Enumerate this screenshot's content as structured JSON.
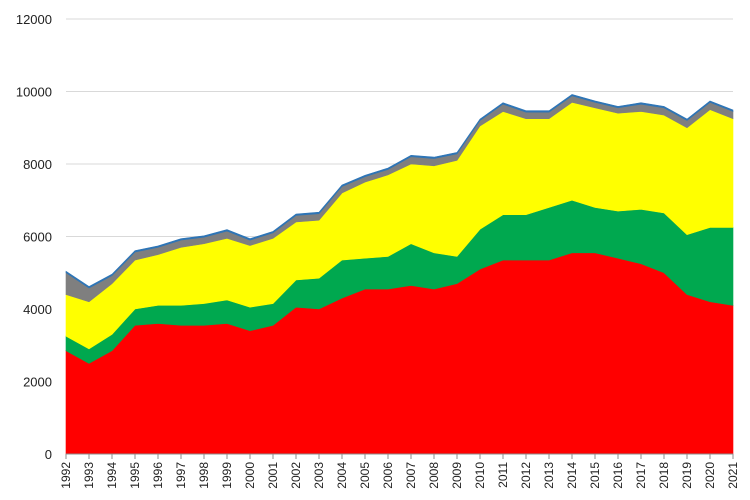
{
  "chart_data": {
    "type": "area",
    "stacked": true,
    "title": "",
    "xlabel": "",
    "ylabel": "",
    "ylim": [
      0,
      12000
    ],
    "yticks": [
      0,
      2000,
      4000,
      6000,
      8000,
      10000,
      12000
    ],
    "grid": "horizontal",
    "legend": "none",
    "categories": [
      "1992",
      "1993",
      "1994",
      "1995",
      "1996",
      "1997",
      "1998",
      "1999",
      "2000",
      "2001",
      "2002",
      "2003",
      "2004",
      "2005",
      "2006",
      "2007",
      "2008",
      "2009",
      "2010",
      "2011",
      "2012",
      "2013",
      "2014",
      "2015",
      "2016",
      "2017",
      "2018",
      "2019",
      "2020",
      "2021"
    ],
    "series": [
      {
        "color": "#ff0000",
        "values": [
          2850,
          2500,
          2850,
          3550,
          3600,
          3550,
          3550,
          3600,
          3400,
          3550,
          4050,
          4000,
          4300,
          4550,
          4550,
          4650,
          4550,
          4700,
          5100,
          5350,
          5350,
          5350,
          5550,
          5550,
          5400,
          5250,
          5000,
          4400,
          4200,
          4100
        ]
      },
      {
        "color": "#00a84f",
        "values": [
          400,
          400,
          450,
          450,
          500,
          550,
          600,
          650,
          650,
          600,
          750,
          850,
          1050,
          850,
          900,
          1150,
          1000,
          750,
          1100,
          1250,
          1250,
          1450,
          1450,
          1250,
          1300,
          1500,
          1650,
          1650,
          2050,
          2150
        ]
      },
      {
        "color": "#ffff00",
        "values": [
          1150,
          1300,
          1400,
          1350,
          1400,
          1600,
          1650,
          1700,
          1700,
          1800,
          1600,
          1600,
          1850,
          2100,
          2250,
          2200,
          2400,
          2650,
          2850,
          2850,
          2650,
          2450,
          2700,
          2750,
          2700,
          2700,
          2700,
          2950,
          3250,
          3000
        ]
      },
      {
        "color": "#7f7f7f",
        "values": [
          600,
          380,
          220,
          220,
          200,
          200,
          180,
          200,
          150,
          150,
          180,
          180,
          180,
          150,
          150,
          200,
          200,
          180,
          150,
          200,
          180,
          180,
          180,
          150,
          150,
          200,
          200,
          200,
          200,
          200
        ]
      },
      {
        "color": "#2e75b6",
        "values": [
          40,
          40,
          40,
          40,
          40,
          40,
          40,
          40,
          40,
          40,
          40,
          40,
          40,
          40,
          40,
          40,
          40,
          40,
          40,
          40,
          40,
          40,
          40,
          40,
          40,
          40,
          40,
          40,
          40,
          40
        ]
      }
    ]
  }
}
